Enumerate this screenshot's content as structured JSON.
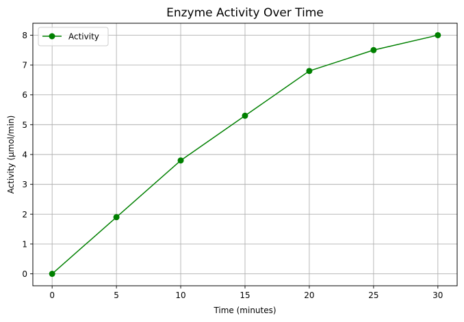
{
  "chart_data": {
    "type": "line",
    "title": "Enzyme Activity Over Time",
    "xlabel": "Time (minutes)",
    "ylabel": "Activity (µmol/min)",
    "x": [
      0,
      5,
      10,
      15,
      20,
      25,
      30
    ],
    "series": [
      {
        "name": "Activity",
        "values": [
          0,
          1.9,
          3.8,
          5.3,
          6.8,
          7.5,
          8
        ],
        "color": "#008000",
        "marker": "circle"
      }
    ],
    "xlim": [
      -1.5,
      31.5
    ],
    "ylim": [
      -0.4,
      8.4
    ],
    "xticks": [
      0,
      5,
      10,
      15,
      20,
      25,
      30
    ],
    "yticks": [
      0,
      1,
      2,
      3,
      4,
      5,
      6,
      7,
      8
    ],
    "grid": true,
    "legend_position": "top-left"
  }
}
